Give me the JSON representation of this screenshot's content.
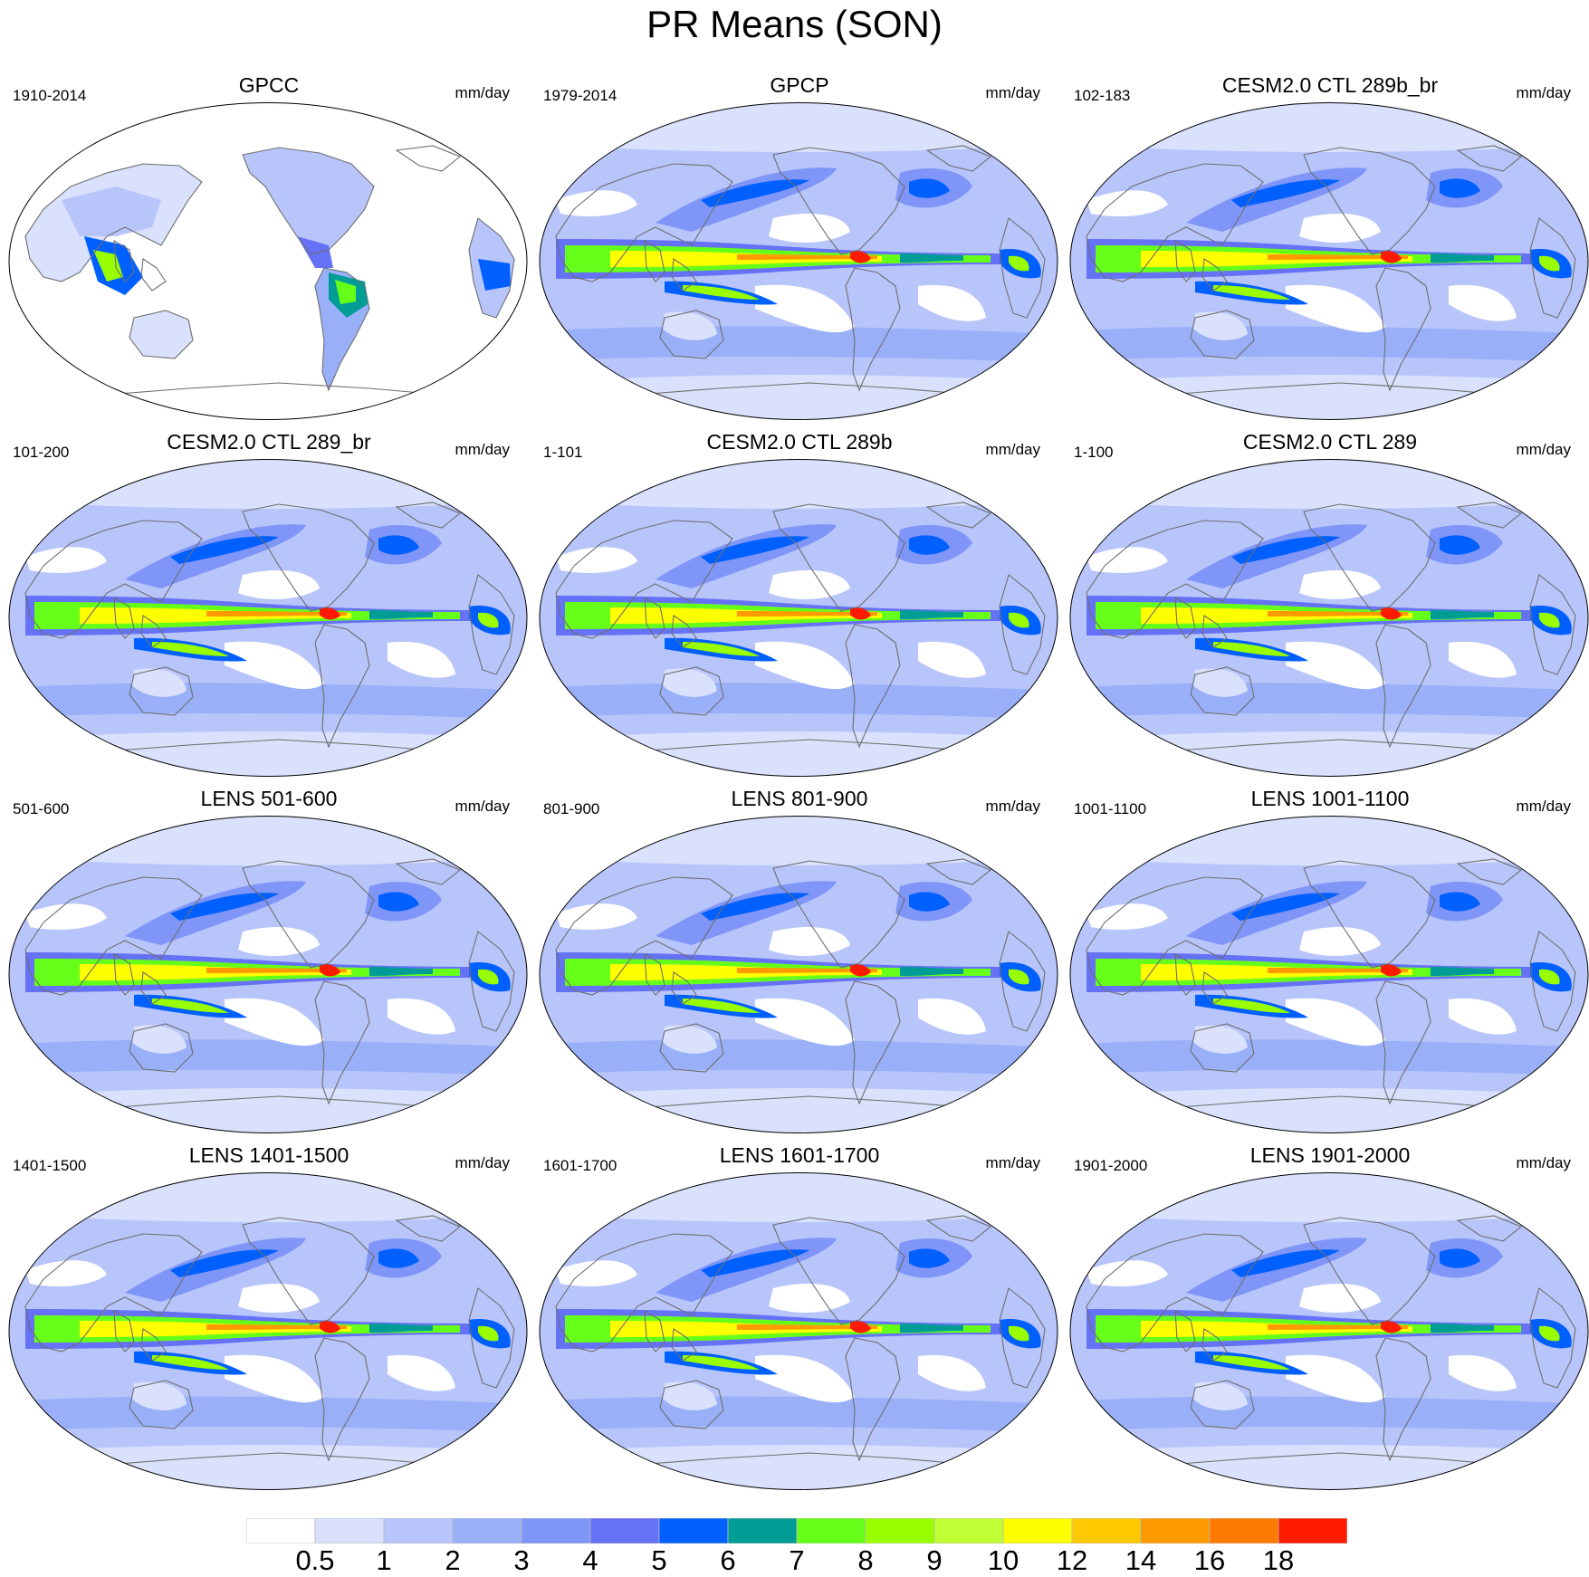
{
  "title": "PR Means (SON)",
  "units": "mm/day",
  "panels": [
    {
      "title": "GPCC",
      "period": "1910-2014",
      "land_only": true
    },
    {
      "title": "GPCP",
      "period": "1979-2014",
      "land_only": false
    },
    {
      "title": "CESM2.0 CTL 289b_br",
      "period": "102-183",
      "land_only": false
    },
    {
      "title": "CESM2.0 CTL 289_br",
      "period": "101-200",
      "land_only": false
    },
    {
      "title": "CESM2.0 CTL 289b",
      "period": "1-101",
      "land_only": false
    },
    {
      "title": "CESM2.0 CTL 289",
      "period": "1-100",
      "land_only": false
    },
    {
      "title": "LENS 501-600",
      "period": "501-600",
      "land_only": false
    },
    {
      "title": "LENS 801-900",
      "period": "801-900",
      "land_only": false
    },
    {
      "title": "LENS 1001-1100",
      "period": "1001-1100",
      "land_only": false
    },
    {
      "title": "LENS 1401-1500",
      "period": "1401-1500",
      "land_only": false
    },
    {
      "title": "LENS 1601-1700",
      "period": "1601-1700",
      "land_only": false
    },
    {
      "title": "LENS 1901-2000",
      "period": "1901-2000",
      "land_only": false
    }
  ],
  "colorbar": {
    "labels": [
      "0.5",
      "1",
      "2",
      "3",
      "4",
      "5",
      "6",
      "7",
      "8",
      "9",
      "10",
      "12",
      "14",
      "16",
      "18"
    ],
    "colors": [
      "#ffffff",
      "#d9e1fc",
      "#b8c5fb",
      "#99b0f9",
      "#7f95f7",
      "#6672f5",
      "#0060ff",
      "#009c96",
      "#66ff19",
      "#99ff00",
      "#c0ff33",
      "#ffff00",
      "#ffc800",
      "#ff9a00",
      "#ff7a00",
      "#ff1a00"
    ]
  }
}
